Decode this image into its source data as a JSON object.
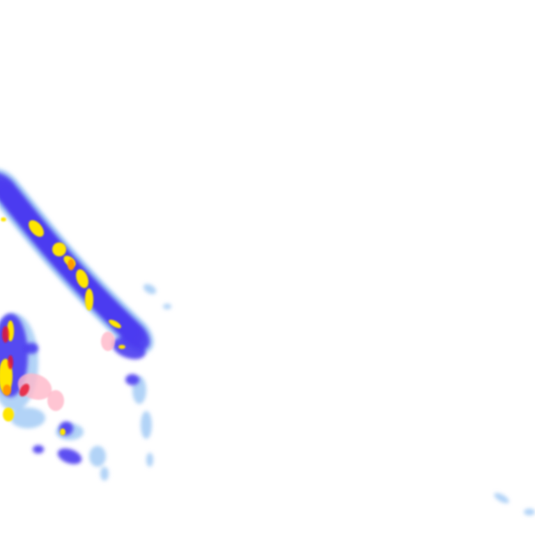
{
  "map": {
    "type": "weather-radar-precipitation-tile",
    "colors": {
      "background": "#ffffff",
      "light": "#9fc8f5",
      "moderate": "#4b3cf0",
      "heavy": "#ffe600",
      "intense": "#ff9900",
      "extreme": "#e8102a",
      "mixed": "#ffb6c8"
    }
  }
}
